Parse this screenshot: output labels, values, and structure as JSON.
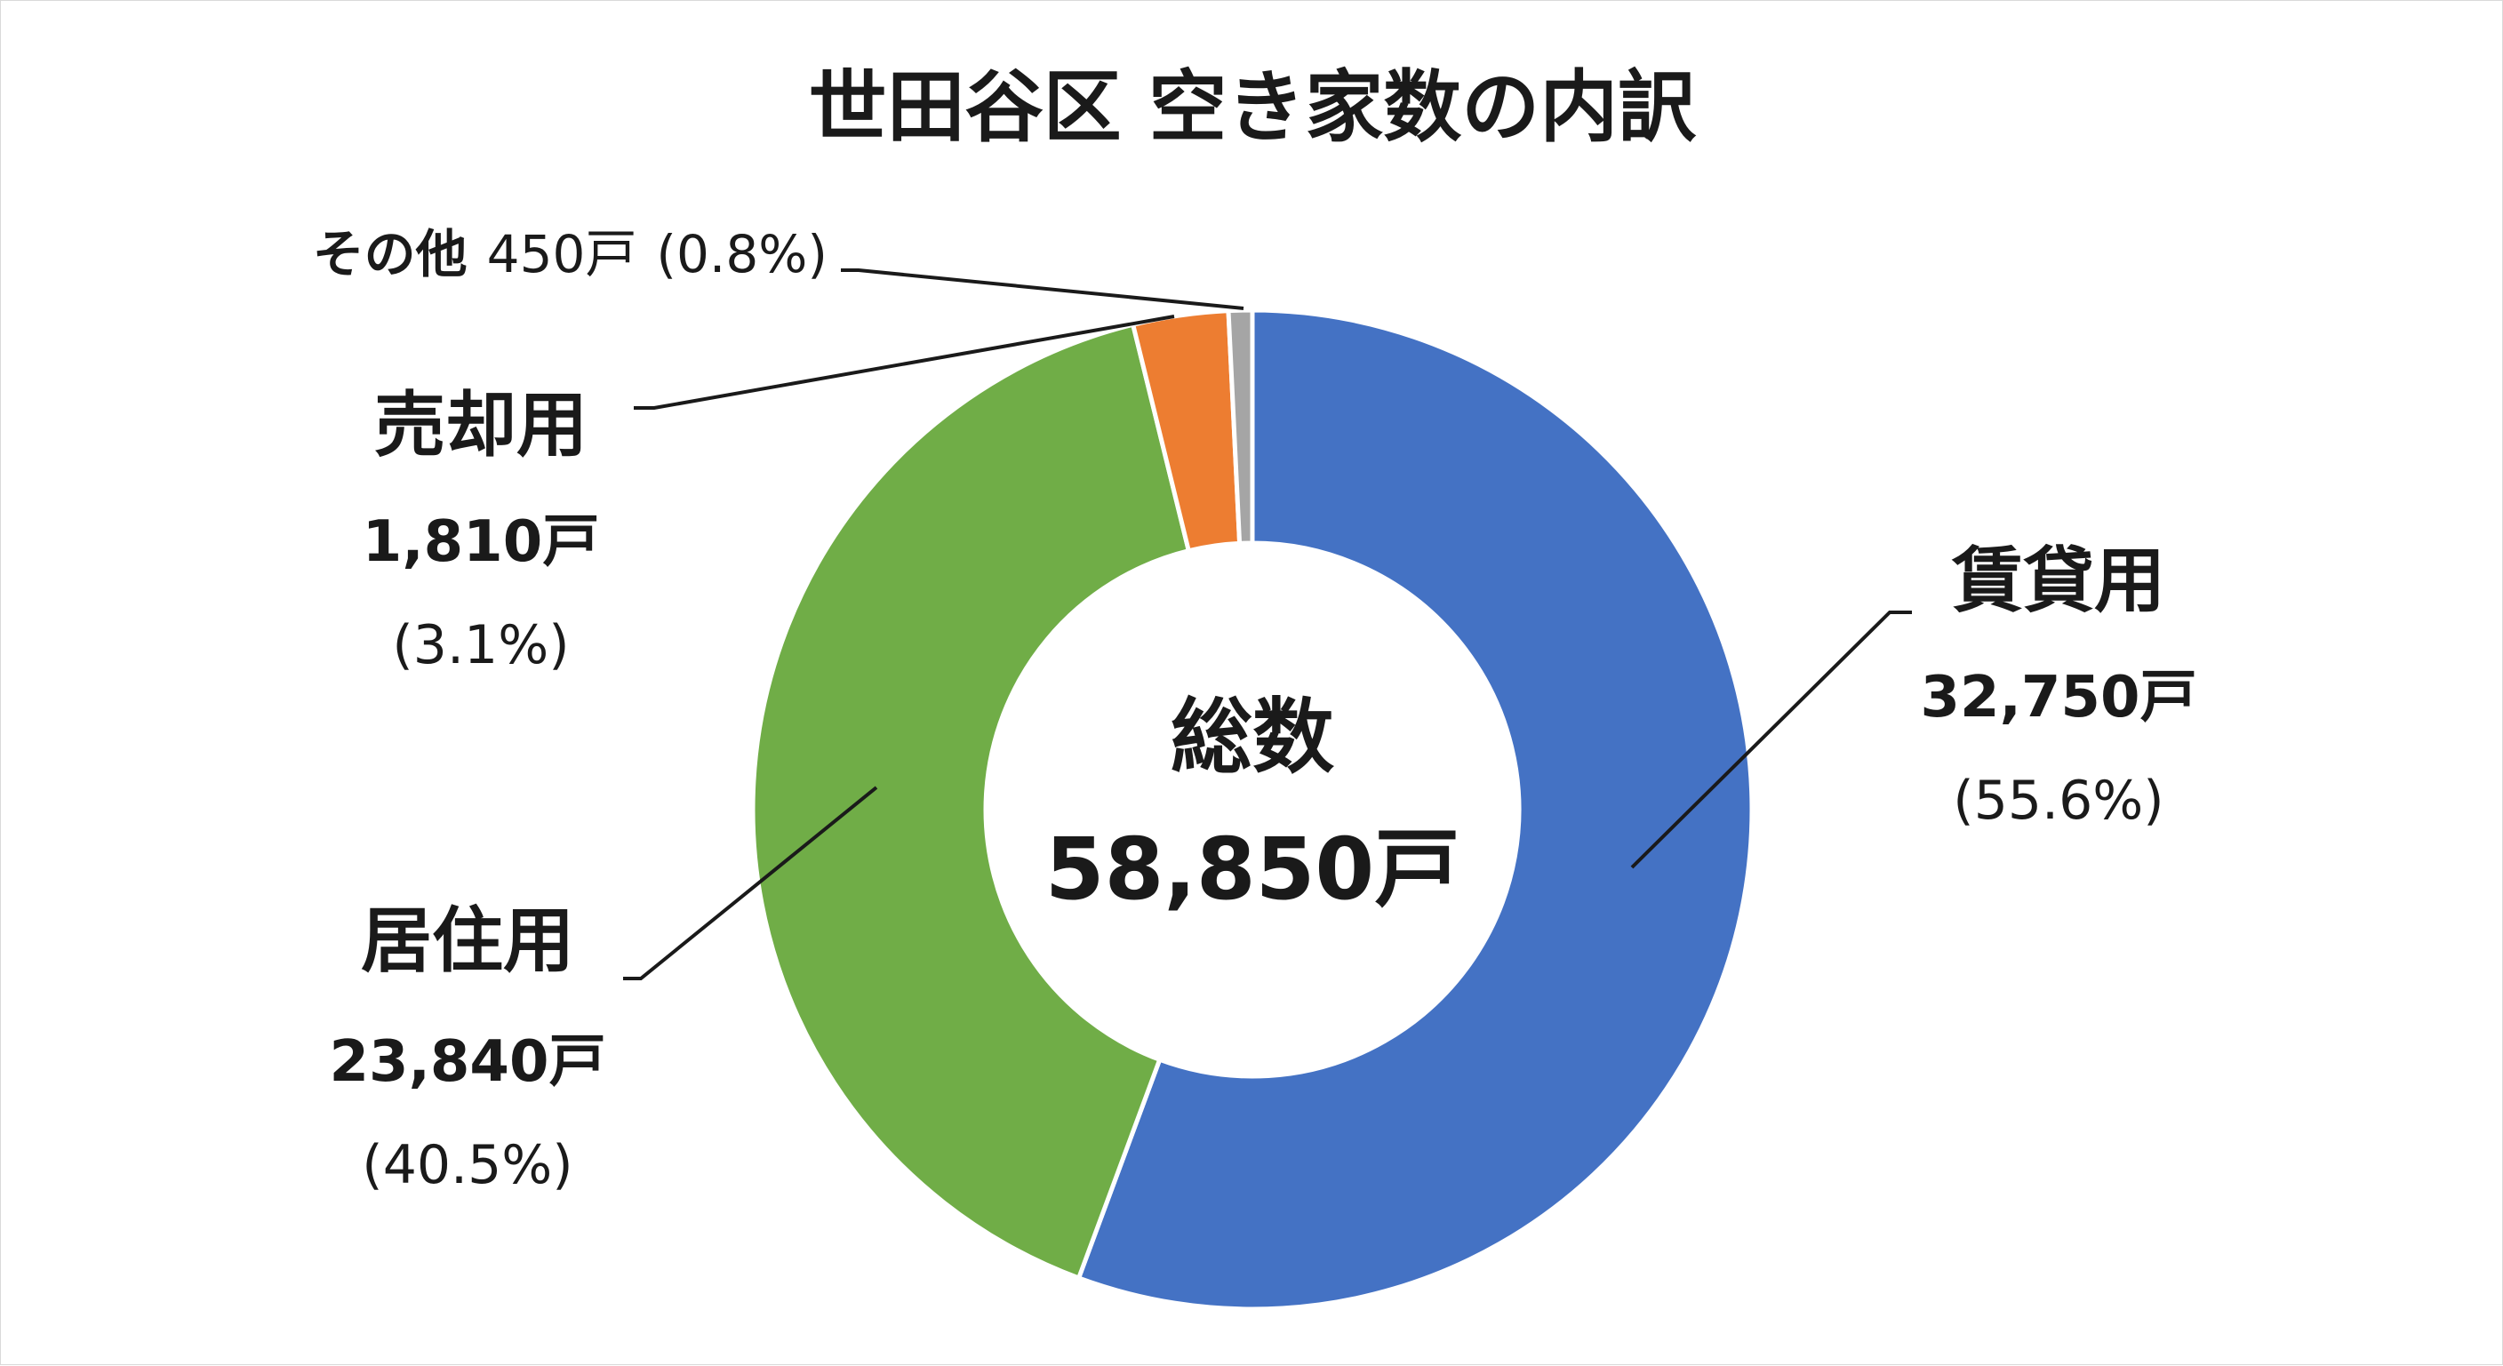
{
  "chart_data": {
    "type": "pie",
    "title": "世田谷区 空き家数の内訳",
    "center": {
      "label": "総数",
      "value": "58,850戸",
      "total": 58850
    },
    "slices": [
      {
        "name": "賃貸用",
        "value": 32750,
        "value_label": "32,750戸",
        "percent": 55.6,
        "percent_label": "(55.6%)",
        "color": "#4472c4"
      },
      {
        "name": "居住用",
        "value": 23840,
        "value_label": "23,840戸",
        "percent": 40.5,
        "percent_label": "(40.5%)",
        "color": "#70ad47"
      },
      {
        "name": "売却用",
        "value": 1810,
        "value_label": "1,810戸",
        "percent": 3.1,
        "percent_label": "(3.1%)",
        "color": "#ed7d31"
      },
      {
        "name": "その他",
        "value": 450,
        "value_label": "450戸",
        "percent": 0.8,
        "percent_label": "(0.8%)",
        "color": "#a5a5a5"
      }
    ]
  }
}
